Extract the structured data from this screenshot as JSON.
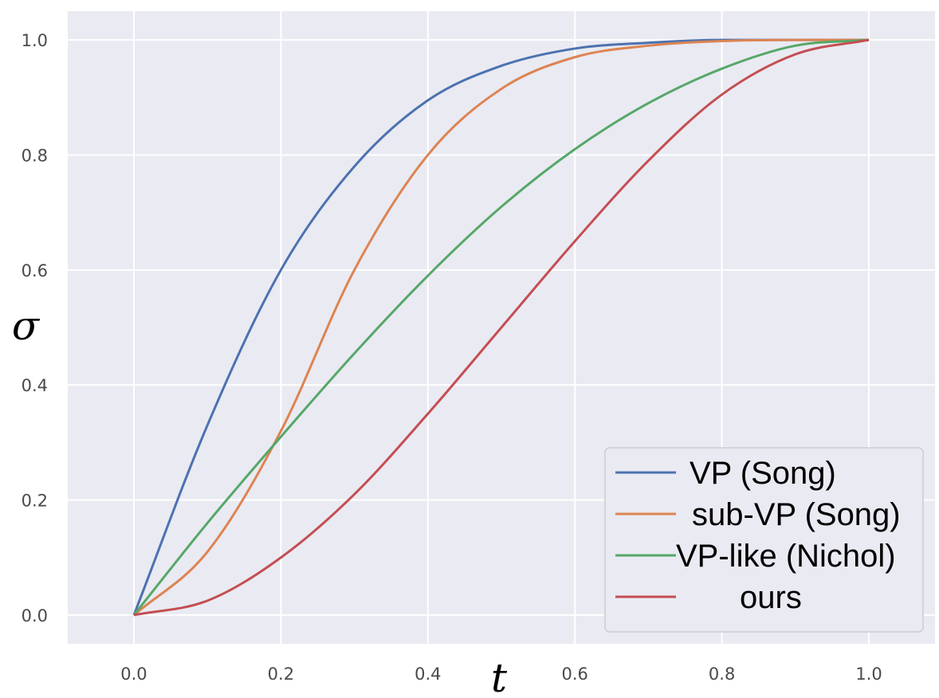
{
  "chart_data": {
    "type": "line",
    "xlabel": "t",
    "ylabel": "σ",
    "xlim": [
      -0.09,
      1.09
    ],
    "ylim": [
      -0.05,
      1.05
    ],
    "x_ticks": [
      "0.0",
      "0.2",
      "0.4",
      "0.6",
      "0.8",
      "1.0"
    ],
    "y_ticks": [
      "0.0",
      "0.2",
      "0.4",
      "0.6",
      "0.8",
      "1.0"
    ],
    "grid": true,
    "legend_position": "bottom-right",
    "x": [
      0.0,
      0.1,
      0.2,
      0.3,
      0.4,
      0.5,
      0.6,
      0.7,
      0.8,
      0.9,
      1.0
    ],
    "series": [
      {
        "name": "VP (Song)",
        "color": "#4c72b0",
        "values": [
          0.0,
          0.33,
          0.6,
          0.78,
          0.895,
          0.955,
          0.985,
          0.995,
          1.0,
          1.0,
          1.0
        ]
      },
      {
        "name": "sub-VP (Song)",
        "color": "#dd8452",
        "values": [
          0.0,
          0.11,
          0.32,
          0.6,
          0.8,
          0.915,
          0.97,
          0.99,
          0.998,
          1.0,
          1.0
        ]
      },
      {
        "name": "VP-like (Nichol)",
        "color": "#55a868",
        "values": [
          0.0,
          0.16,
          0.31,
          0.455,
          0.59,
          0.71,
          0.81,
          0.89,
          0.95,
          0.99,
          1.0
        ]
      },
      {
        "name": "ours",
        "color": "#c44e52",
        "values": [
          0.0,
          0.025,
          0.1,
          0.21,
          0.35,
          0.5,
          0.65,
          0.79,
          0.905,
          0.975,
          1.0
        ]
      }
    ]
  }
}
